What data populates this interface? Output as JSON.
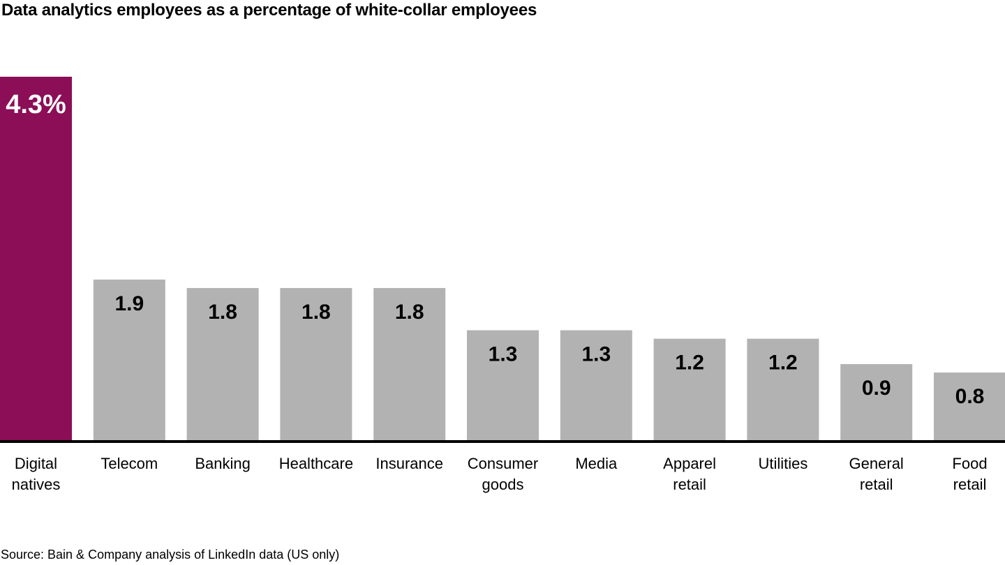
{
  "chart_data": {
    "type": "bar",
    "title": "Data analytics employees as a percentage of white-collar employees",
    "xlabel": "",
    "ylabel": "",
    "categories": [
      [
        "Digital",
        "natives"
      ],
      [
        "Telecom"
      ],
      [
        "Banking"
      ],
      [
        "Healthcare"
      ],
      [
        "Insurance"
      ],
      [
        "Consumer",
        "goods"
      ],
      [
        "Media"
      ],
      [
        "Apparel",
        "retail"
      ],
      [
        "Utilities"
      ],
      [
        "General",
        "retail"
      ],
      [
        "Food",
        "retail"
      ]
    ],
    "values": [
      4.3,
      1.9,
      1.8,
      1.8,
      1.8,
      1.3,
      1.3,
      1.2,
      1.2,
      0.9,
      0.8
    ],
    "value_labels": [
      "4.3%",
      "1.9",
      "1.8",
      "1.8",
      "1.8",
      "1.3",
      "1.3",
      "1.2",
      "1.2",
      "0.9",
      "0.8"
    ],
    "highlight_index": 0,
    "colors": {
      "highlight": "#8B0E57",
      "default": "#B2B2B2",
      "highlight_label": "#FFFFFF",
      "default_label": "#000000",
      "axis": "#000000"
    },
    "ylim": [
      0,
      4.3
    ],
    "grid": false,
    "legend": "none",
    "source": "Source: Bain & Company analysis of LinkedIn data (US only)"
  }
}
